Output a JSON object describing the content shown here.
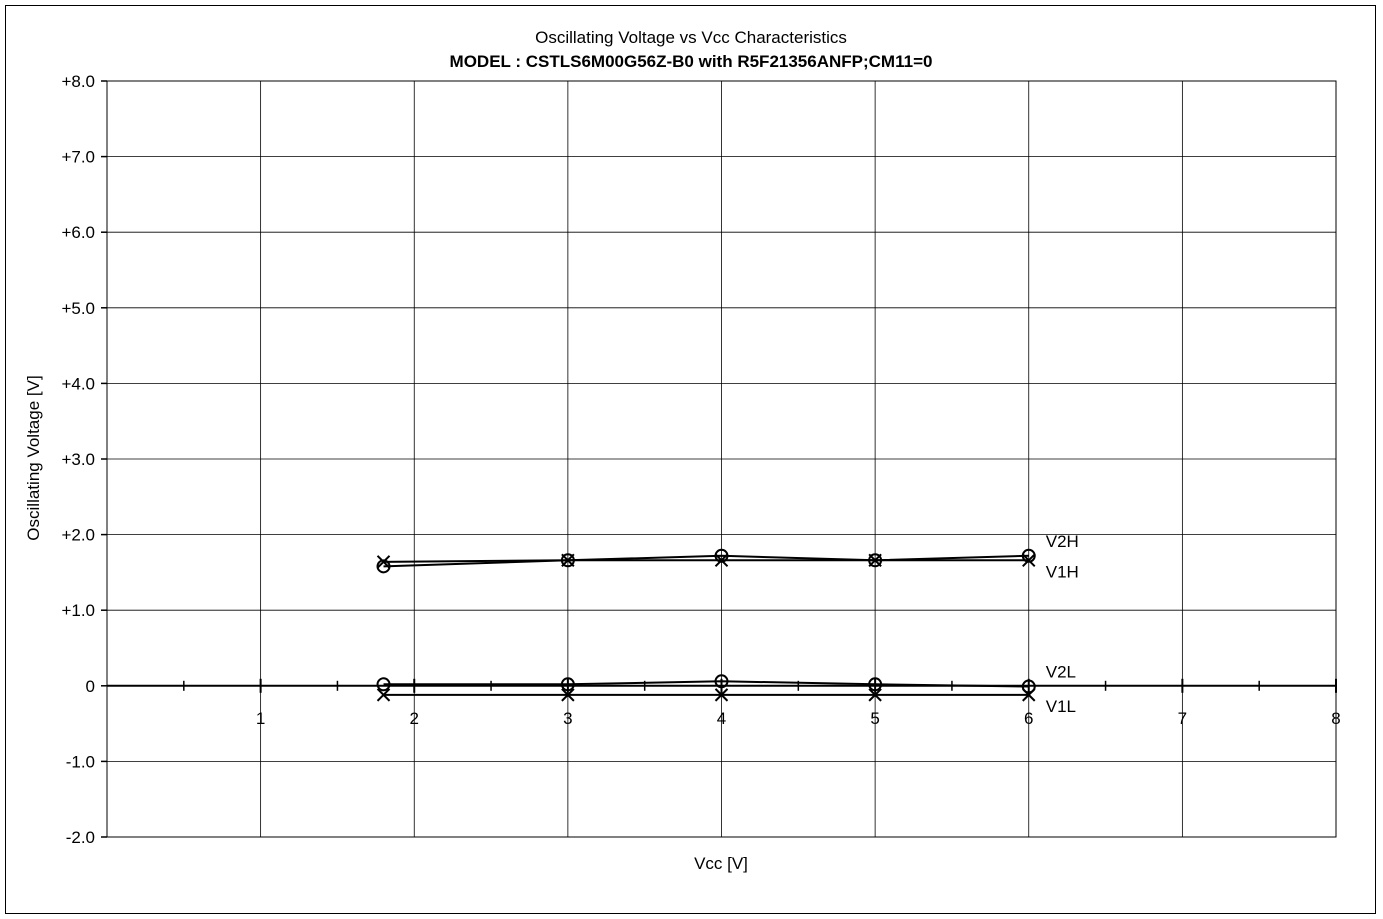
{
  "chart_data": {
    "type": "line",
    "title": "Oscillating Voltage vs Vcc Characteristics",
    "subtitle": "MODEL : CSTLS6M00G56Z-B0 with R5F21356ANFP;CM11=0",
    "xlabel": "Vcc [V]",
    "ylabel": "Oscillating Voltage [V]",
    "xlim": [
      0,
      8
    ],
    "ylim": [
      -2.0,
      8.0
    ],
    "grid": true,
    "x_tick_labels": [
      "1",
      "2",
      "3",
      "4",
      "5",
      "6",
      "7",
      "8"
    ],
    "y_tick_labels": [
      "-2.0",
      "-1.0",
      "0",
      "+1.0",
      "+2.0",
      "+3.0",
      "+4.0",
      "+5.0",
      "+6.0",
      "+7.0",
      "+8.0"
    ],
    "series": [
      {
        "name": "V2H",
        "marker": "circle",
        "x": [
          1.8,
          3,
          4,
          5,
          6
        ],
        "y": [
          1.58,
          1.66,
          1.72,
          1.66,
          1.72
        ]
      },
      {
        "name": "V1H",
        "marker": "x",
        "x": [
          1.8,
          3,
          4,
          5,
          6
        ],
        "y": [
          1.64,
          1.66,
          1.66,
          1.66,
          1.66
        ]
      },
      {
        "name": "V2L",
        "marker": "circle",
        "x": [
          1.8,
          3,
          4,
          5,
          6
        ],
        "y": [
          0.02,
          0.02,
          0.06,
          0.02,
          -0.01
        ]
      },
      {
        "name": "V1L",
        "marker": "x",
        "x": [
          1.8,
          3,
          4,
          5,
          6
        ],
        "y": [
          -0.12,
          -0.12,
          -0.12,
          -0.12,
          -0.12
        ]
      }
    ]
  }
}
